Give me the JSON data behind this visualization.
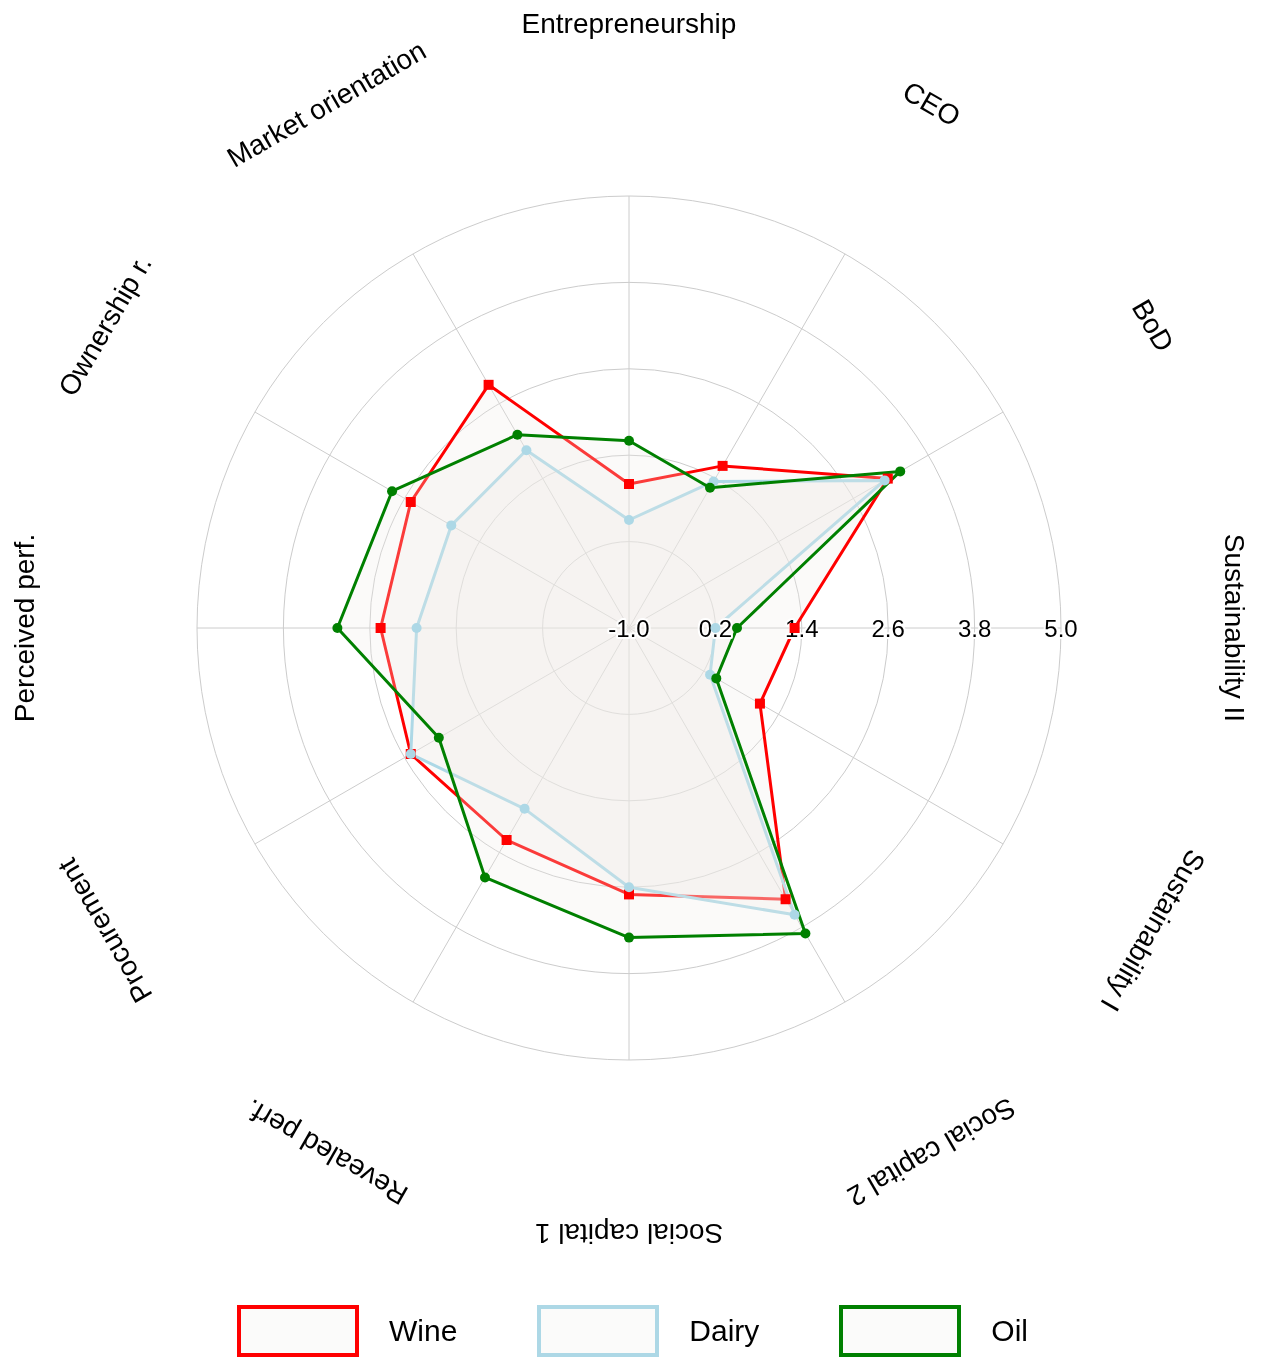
{
  "chart_data": {
    "type": "radar",
    "categories": [
      "Entrepreneurship",
      "CEO",
      "BoD",
      "Sustainability II",
      "Sustainability I",
      "Social capital 2",
      "Social capital 1",
      "Revealed perf.",
      "Procurement",
      "Perceived perf.",
      "Ownership r.",
      "Market orientation"
    ],
    "ylim": [
      -1,
      5
    ],
    "yticks": [
      {
        "value": -1,
        "label": "-1.0"
      },
      {
        "value": 0.2,
        "label": "0.2"
      },
      {
        "value": 1.4,
        "label": "1.4"
      },
      {
        "value": 2.6,
        "label": "2.6"
      },
      {
        "value": 3.8,
        "label": "3.8"
      },
      {
        "value": 5,
        "label": "5.0"
      }
    ],
    "grid": true,
    "legend": "bottom",
    "series": [
      {
        "name": "Wine",
        "color": "#ff0000",
        "marker": "square",
        "values": [
          1.0,
          1.6,
          3.15,
          1.3,
          1.1,
          3.35,
          2.7,
          2.4,
          2.5,
          2.45,
          2.5,
          2.9
        ]
      },
      {
        "name": "Dairy",
        "color": "#add8e6",
        "marker": "circle",
        "values": [
          0.5,
          1.35,
          3.1,
          0.2,
          0.3,
          3.6,
          2.6,
          1.9,
          2.5,
          1.95,
          1.85,
          1.85
        ]
      },
      {
        "name": "Oil",
        "color": "#008000",
        "marker": "circle",
        "values": [
          1.6,
          1.25,
          3.35,
          0.5,
          0.4,
          3.9,
          3.3,
          3.0,
          2.05,
          3.05,
          2.8,
          2.1
        ]
      }
    ]
  }
}
